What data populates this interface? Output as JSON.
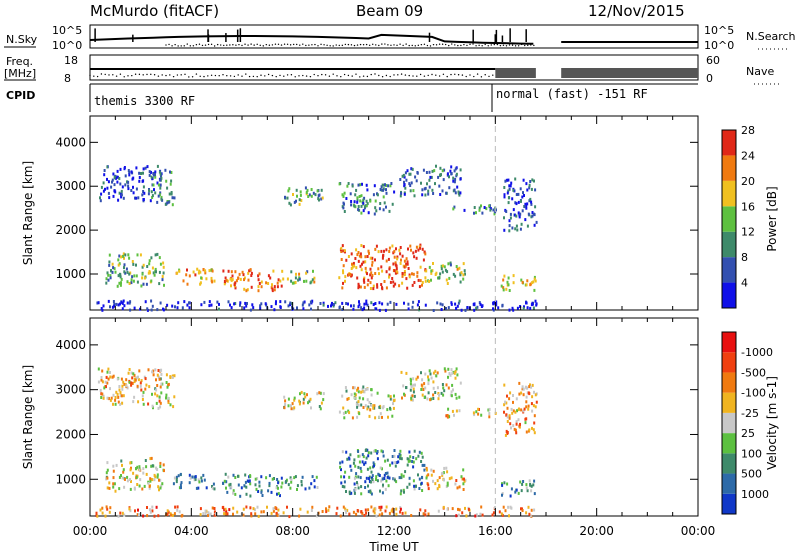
{
  "header": {
    "station": "McMurdo (fitACF)",
    "beam": "Beam 09",
    "date": "12/Nov/2015"
  },
  "summary_panel": {
    "nsky_label": "N.Sky",
    "nsky_tick_top": "10^5",
    "nsky_tick_bottom": "10^0",
    "nsearch_label": "N.Search",
    "nsearch_tick_top": "10^5",
    "nsearch_tick_bottom": "10^0",
    "freq_label": "Freq.",
    "freq_unit": "[MHz]",
    "freq_tick_top": "18",
    "freq_tick_bottom": "8",
    "nave_label": "Nave",
    "nave_tick_top": "60",
    "nave_tick_bottom": "0",
    "cpid_label": "CPID",
    "cpid_mode_1": "themis 3300 RF",
    "cpid_mode_2": "normal (fast) -151 RF"
  },
  "chart_data": [
    {
      "type": "heatmap",
      "panel": "power",
      "xlabel": "Time UT",
      "ylabel": "Slant Range [km]",
      "x_ticks": [
        "00:00",
        "04:00",
        "08:00",
        "12:00",
        "16:00",
        "20:00",
        "00:00"
      ],
      "xlim_hours": [
        0,
        24
      ],
      "y_ticks": [
        "1000",
        "2000",
        "3000",
        "4000"
      ],
      "ylim": [
        180,
        4600
      ],
      "colorbar_label": "Power [dB]",
      "colorbar_ticks": [
        "4",
        "8",
        "12",
        "16",
        "20",
        "24",
        "28"
      ],
      "colorbar_colors": [
        "#1010e8",
        "#3350b0",
        "#3e8a6a",
        "#5ec040",
        "#f0c020",
        "#f07a10",
        "#e02818"
      ],
      "scatter_regions": [
        {
          "t0": 0.6,
          "t1": 2.9,
          "r0": 750,
          "r1": 1500,
          "level": 0.45
        },
        {
          "t0": 3.2,
          "t1": 4.9,
          "r0": 800,
          "r1": 1150,
          "level": 0.7
        },
        {
          "t0": 5.2,
          "t1": 7.6,
          "r0": 650,
          "r1": 1150,
          "level": 0.8
        },
        {
          "t0": 7.6,
          "t1": 9.0,
          "r0": 800,
          "r1": 1100,
          "level": 0.5
        },
        {
          "t0": 9.8,
          "t1": 13.2,
          "r0": 700,
          "r1": 1700,
          "level": 0.85
        },
        {
          "t0": 13.2,
          "t1": 14.8,
          "r0": 800,
          "r1": 1300,
          "level": 0.5
        },
        {
          "t0": 16.2,
          "t1": 17.6,
          "r0": 650,
          "r1": 1000,
          "level": 0.65
        },
        {
          "t0": 0.3,
          "t1": 2.8,
          "r0": 2700,
          "r1": 3500,
          "level": 0.15
        },
        {
          "t0": 2.4,
          "t1": 3.3,
          "r0": 2600,
          "r1": 3400,
          "level": 0.35
        },
        {
          "t0": 7.6,
          "t1": 9.2,
          "r0": 2600,
          "r1": 3000,
          "level": 0.4
        },
        {
          "t0": 9.8,
          "t1": 12.0,
          "r0": 2400,
          "r1": 3100,
          "level": 0.3
        },
        {
          "t0": 12.2,
          "t1": 14.6,
          "r0": 2800,
          "r1": 3500,
          "level": 0.25
        },
        {
          "t0": 14.0,
          "t1": 16.0,
          "r0": 2400,
          "r1": 2600,
          "level": 0.3
        },
        {
          "t0": 16.3,
          "t1": 17.6,
          "r0": 2000,
          "r1": 3200,
          "level": 0.2
        },
        {
          "t0": 0.2,
          "t1": 17.6,
          "r0": 200,
          "r1": 420,
          "level": 0.1
        }
      ]
    },
    {
      "type": "heatmap",
      "panel": "velocity",
      "xlabel": "Time UT",
      "ylabel": "Slant Range [km]",
      "x_ticks": [
        "00:00",
        "04:00",
        "08:00",
        "12:00",
        "16:00",
        "20:00",
        "00:00"
      ],
      "xlim_hours": [
        0,
        24
      ],
      "y_ticks": [
        "1000",
        "2000",
        "3000",
        "4000"
      ],
      "ylim": [
        180,
        4600
      ],
      "colorbar_label": "Velocity [m s-1]",
      "colorbar_ticks": [
        "1000",
        "500",
        "100",
        "25",
        "-25",
        "-100",
        "-500",
        "-1000"
      ],
      "colorbar_colors": [
        "#1038c8",
        "#2d6aa8",
        "#3e8a6a",
        "#5cc040",
        "#c8c8c8",
        "#f0b420",
        "#f07a10",
        "#f04010",
        "#e81010"
      ],
      "scatter_regions": [
        {
          "t0": 0.6,
          "t1": 2.9,
          "r0": 750,
          "r1": 1500,
          "level": 0.55
        },
        {
          "t0": 3.2,
          "t1": 4.9,
          "r0": 800,
          "r1": 1150,
          "level": 0.3
        },
        {
          "t0": 5.2,
          "t1": 7.6,
          "r0": 650,
          "r1": 1150,
          "level": 0.25
        },
        {
          "t0": 7.6,
          "t1": 9.0,
          "r0": 800,
          "r1": 1100,
          "level": 0.25
        },
        {
          "t0": 9.8,
          "t1": 13.2,
          "r0": 700,
          "r1": 1700,
          "level": 0.25
        },
        {
          "t0": 13.2,
          "t1": 14.8,
          "r0": 800,
          "r1": 1300,
          "level": 0.6
        },
        {
          "t0": 16.2,
          "t1": 17.6,
          "r0": 650,
          "r1": 1000,
          "level": 0.3
        },
        {
          "t0": 0.3,
          "t1": 2.8,
          "r0": 2700,
          "r1": 3500,
          "level": 0.6
        },
        {
          "t0": 2.4,
          "t1": 3.3,
          "r0": 2600,
          "r1": 3400,
          "level": 0.5
        },
        {
          "t0": 7.6,
          "t1": 9.2,
          "r0": 2600,
          "r1": 3000,
          "level": 0.5
        },
        {
          "t0": 9.8,
          "t1": 12.0,
          "r0": 2400,
          "r1": 3100,
          "level": 0.5
        },
        {
          "t0": 12.2,
          "t1": 14.6,
          "r0": 2800,
          "r1": 3500,
          "level": 0.5
        },
        {
          "t0": 14.0,
          "t1": 16.0,
          "r0": 2400,
          "r1": 2600,
          "level": 0.6
        },
        {
          "t0": 16.3,
          "t1": 17.6,
          "r0": 2000,
          "r1": 3200,
          "level": 0.65
        },
        {
          "t0": 0.2,
          "t1": 17.6,
          "r0": 200,
          "r1": 420,
          "level": 0.7
        }
      ]
    }
  ]
}
